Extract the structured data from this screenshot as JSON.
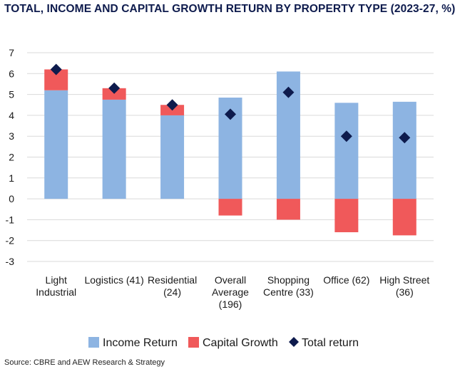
{
  "chart_data": {
    "type": "bar",
    "title": "TOTAL, INCOME AND CAPITAL GROWTH RETURN BY PROPERTY TYPE (2023-27, %)",
    "categories": [
      [
        "Light",
        "Industrial"
      ],
      [
        "Logistics (41)"
      ],
      [
        "Residential",
        "(24)"
      ],
      [
        "Overall",
        "Average",
        "(196)"
      ],
      [
        "Shopping",
        "Centre (33)"
      ],
      [
        "Office (62)"
      ],
      [
        "High Street",
        "(36)"
      ]
    ],
    "series": [
      {
        "name": "Income Return",
        "type": "bar",
        "color": "#8db4e2",
        "values": [
          5.2,
          4.75,
          4.0,
          4.85,
          6.1,
          4.6,
          4.65
        ]
      },
      {
        "name": "Capital Growth",
        "type": "bar",
        "color": "#f0595a",
        "values": [
          1.0,
          0.55,
          0.5,
          -0.8,
          -1.0,
          -1.6,
          -1.75
        ]
      },
      {
        "name": "Total return",
        "type": "marker",
        "color": "#0e1b4d",
        "values": [
          6.2,
          5.3,
          4.5,
          4.05,
          5.1,
          3.0,
          2.93
        ]
      }
    ],
    "ylim": [
      -3,
      7
    ],
    "yticks": [
      "-3",
      "-2",
      "-1",
      "0",
      "1",
      "2",
      "3",
      "4",
      "5",
      "6",
      "7"
    ],
    "grid": true,
    "legend": "bottom",
    "xlabel": "",
    "ylabel": ""
  },
  "source": "Source: CBRE and AEW Research & Strategy"
}
